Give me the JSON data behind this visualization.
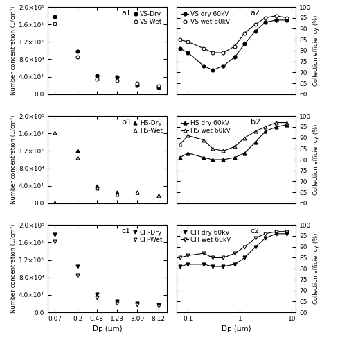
{
  "dp_left_dry": [
    0.07,
    0.2,
    0.48,
    1.23,
    3.09,
    8.12
  ],
  "dp_left_wet": [
    0.07,
    0.2,
    0.48,
    1.23,
    3.09,
    8.12
  ],
  "a1_dry": [
    178000.0,
    98000.0,
    43000.0,
    40000.0,
    20000.0,
    15000.0
  ],
  "a1_wet": [
    162000.0,
    86000.0,
    35000.0,
    32000.0,
    25000.0,
    18000.0
  ],
  "a2_dry_x": [
    0.07,
    0.1,
    0.2,
    0.3,
    0.48,
    0.8,
    1.23,
    2.0,
    3.09,
    5.0,
    8.12
  ],
  "a2_dry": [
    81,
    79,
    73,
    71,
    73,
    77,
    83,
    89,
    93,
    94,
    94
  ],
  "a2_wet_x": [
    0.07,
    0.1,
    0.2,
    0.3,
    0.48,
    0.8,
    1.23,
    2.0,
    3.09,
    5.0,
    8.12
  ],
  "a2_wet": [
    85,
    84,
    81,
    79,
    79,
    82,
    88,
    92,
    95,
    96,
    95
  ],
  "b1_dry": [
    2000,
    120000.0,
    40000.0,
    25000.0,
    25000.0,
    18000.0
  ],
  "b1_wet": [
    162000.0,
    105000.0,
    35000.0,
    20000.0,
    25000.0,
    18000.0
  ],
  "b2_dry_x": [
    0.07,
    0.1,
    0.2,
    0.3,
    0.48,
    0.8,
    1.23,
    2.0,
    3.09,
    5.0,
    8.12
  ],
  "b2_dry": [
    81,
    83,
    81,
    80,
    80,
    81,
    83,
    88,
    93,
    95,
    96
  ],
  "b2_wet_x": [
    0.07,
    0.1,
    0.2,
    0.3,
    0.48,
    0.8,
    1.23,
    2.0,
    3.09,
    5.0,
    8.12
  ],
  "b2_wet": [
    87,
    91,
    89,
    85,
    84,
    86,
    90,
    93,
    95,
    97,
    97
  ],
  "c1_dry": [
    178000.0,
    105000.0,
    42000.0,
    25000.0,
    20000.0,
    18000.0
  ],
  "c1_wet": [
    162000.0,
    85000.0,
    34000.0,
    20000.0,
    18000.0,
    15000.0
  ],
  "c2_dry_x": [
    0.07,
    0.1,
    0.2,
    0.3,
    0.48,
    0.8,
    1.23,
    2.0,
    3.09,
    5.0,
    8.12
  ],
  "c2_dry": [
    81,
    82,
    82,
    81,
    81,
    82,
    85,
    90,
    94,
    96,
    96
  ],
  "c2_wet_x": [
    0.07,
    0.1,
    0.2,
    0.3,
    0.48,
    0.8,
    1.23,
    2.0,
    3.09,
    5.0,
    8.12
  ],
  "c2_wet": [
    85,
    86,
    87,
    85,
    85,
    87,
    90,
    94,
    96,
    97,
    97
  ],
  "ylim_left": [
    0,
    200000.0
  ],
  "yticks_left": [
    0.0,
    40000.0,
    80000.0,
    120000.0,
    160000.0,
    200000.0
  ],
  "ytick_labels_left": [
    "0.0",
    "4.0×10⁴",
    "8.0×10⁴",
    "1.2×10⁵",
    "1.6×10⁵",
    "2.0×10⁵"
  ],
  "ylim_right": [
    60,
    100
  ],
  "yticks_right": [
    60,
    65,
    70,
    75,
    80,
    85,
    90,
    95,
    100
  ],
  "xticks_left_pos": [
    0.07,
    0.2,
    0.48,
    1.23,
    3.09,
    8.12
  ],
  "xtick_labels_left": [
    "0.07",
    "0.2",
    "0.48",
    "1.23",
    "3.09",
    "8.12"
  ],
  "xticks_right": [
    0.1,
    1.0,
    10.0
  ],
  "xtick_labels_right": [
    "0.1",
    "1",
    "10"
  ],
  "xlabel_left": "Dp (μm)",
  "xlabel_right": "Dp (μm)",
  "ylabel_left": "Number concentration (1/cm³)",
  "ylabel_right": "Collection efficiency (%)"
}
